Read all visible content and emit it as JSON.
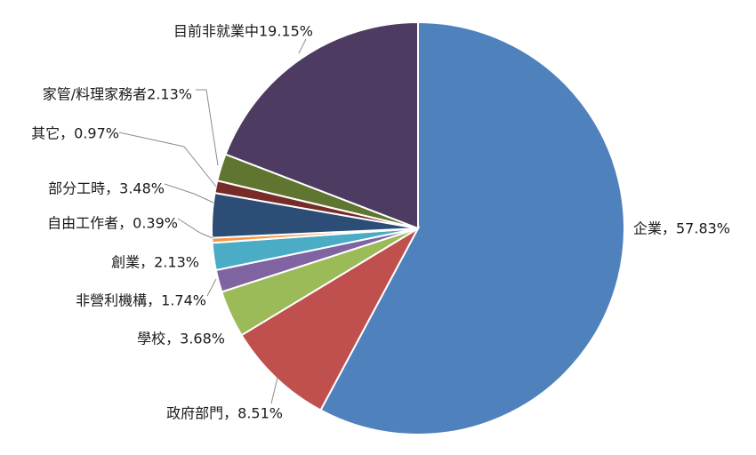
{
  "chart_data": {
    "type": "pie",
    "title": "",
    "start": "12 o'clock",
    "direction": "clockwise",
    "slices": [
      {
        "label": "企業，57.83%",
        "category": "企業",
        "value": 57.83,
        "color": "#4f81bd"
      },
      {
        "label": "政府部門，8.51%",
        "category": "政府部門",
        "value": 8.51,
        "color": "#c0504d"
      },
      {
        "label": "學校，3.68%",
        "category": "學校",
        "value": 3.68,
        "color": "#9bbb59"
      },
      {
        "label": "非營利機構，1.74%",
        "category": "非營利機構",
        "value": 1.74,
        "color": "#8064a2"
      },
      {
        "label": "創業，2.13%",
        "category": "創業",
        "value": 2.13,
        "color": "#4bacc6"
      },
      {
        "label": "自由工作者，0.39%",
        "category": "自由工作者",
        "value": 0.39,
        "color": "#f79646"
      },
      {
        "label": "部分工時，3.48%",
        "category": "部分工時",
        "value": 3.48,
        "color": "#2c4d75"
      },
      {
        "label": "其它，0.97%",
        "category": "其它",
        "value": 0.97,
        "color": "#772c2a"
      },
      {
        "label": "家管/料理家務者2.13%",
        "category": "家管/料理家務者",
        "value": 2.13,
        "color": "#5f7530"
      },
      {
        "label": "目前非就業中19.15%",
        "category": "目前非就業中",
        "value": 19.15,
        "color": "#4d3b62"
      }
    ]
  }
}
